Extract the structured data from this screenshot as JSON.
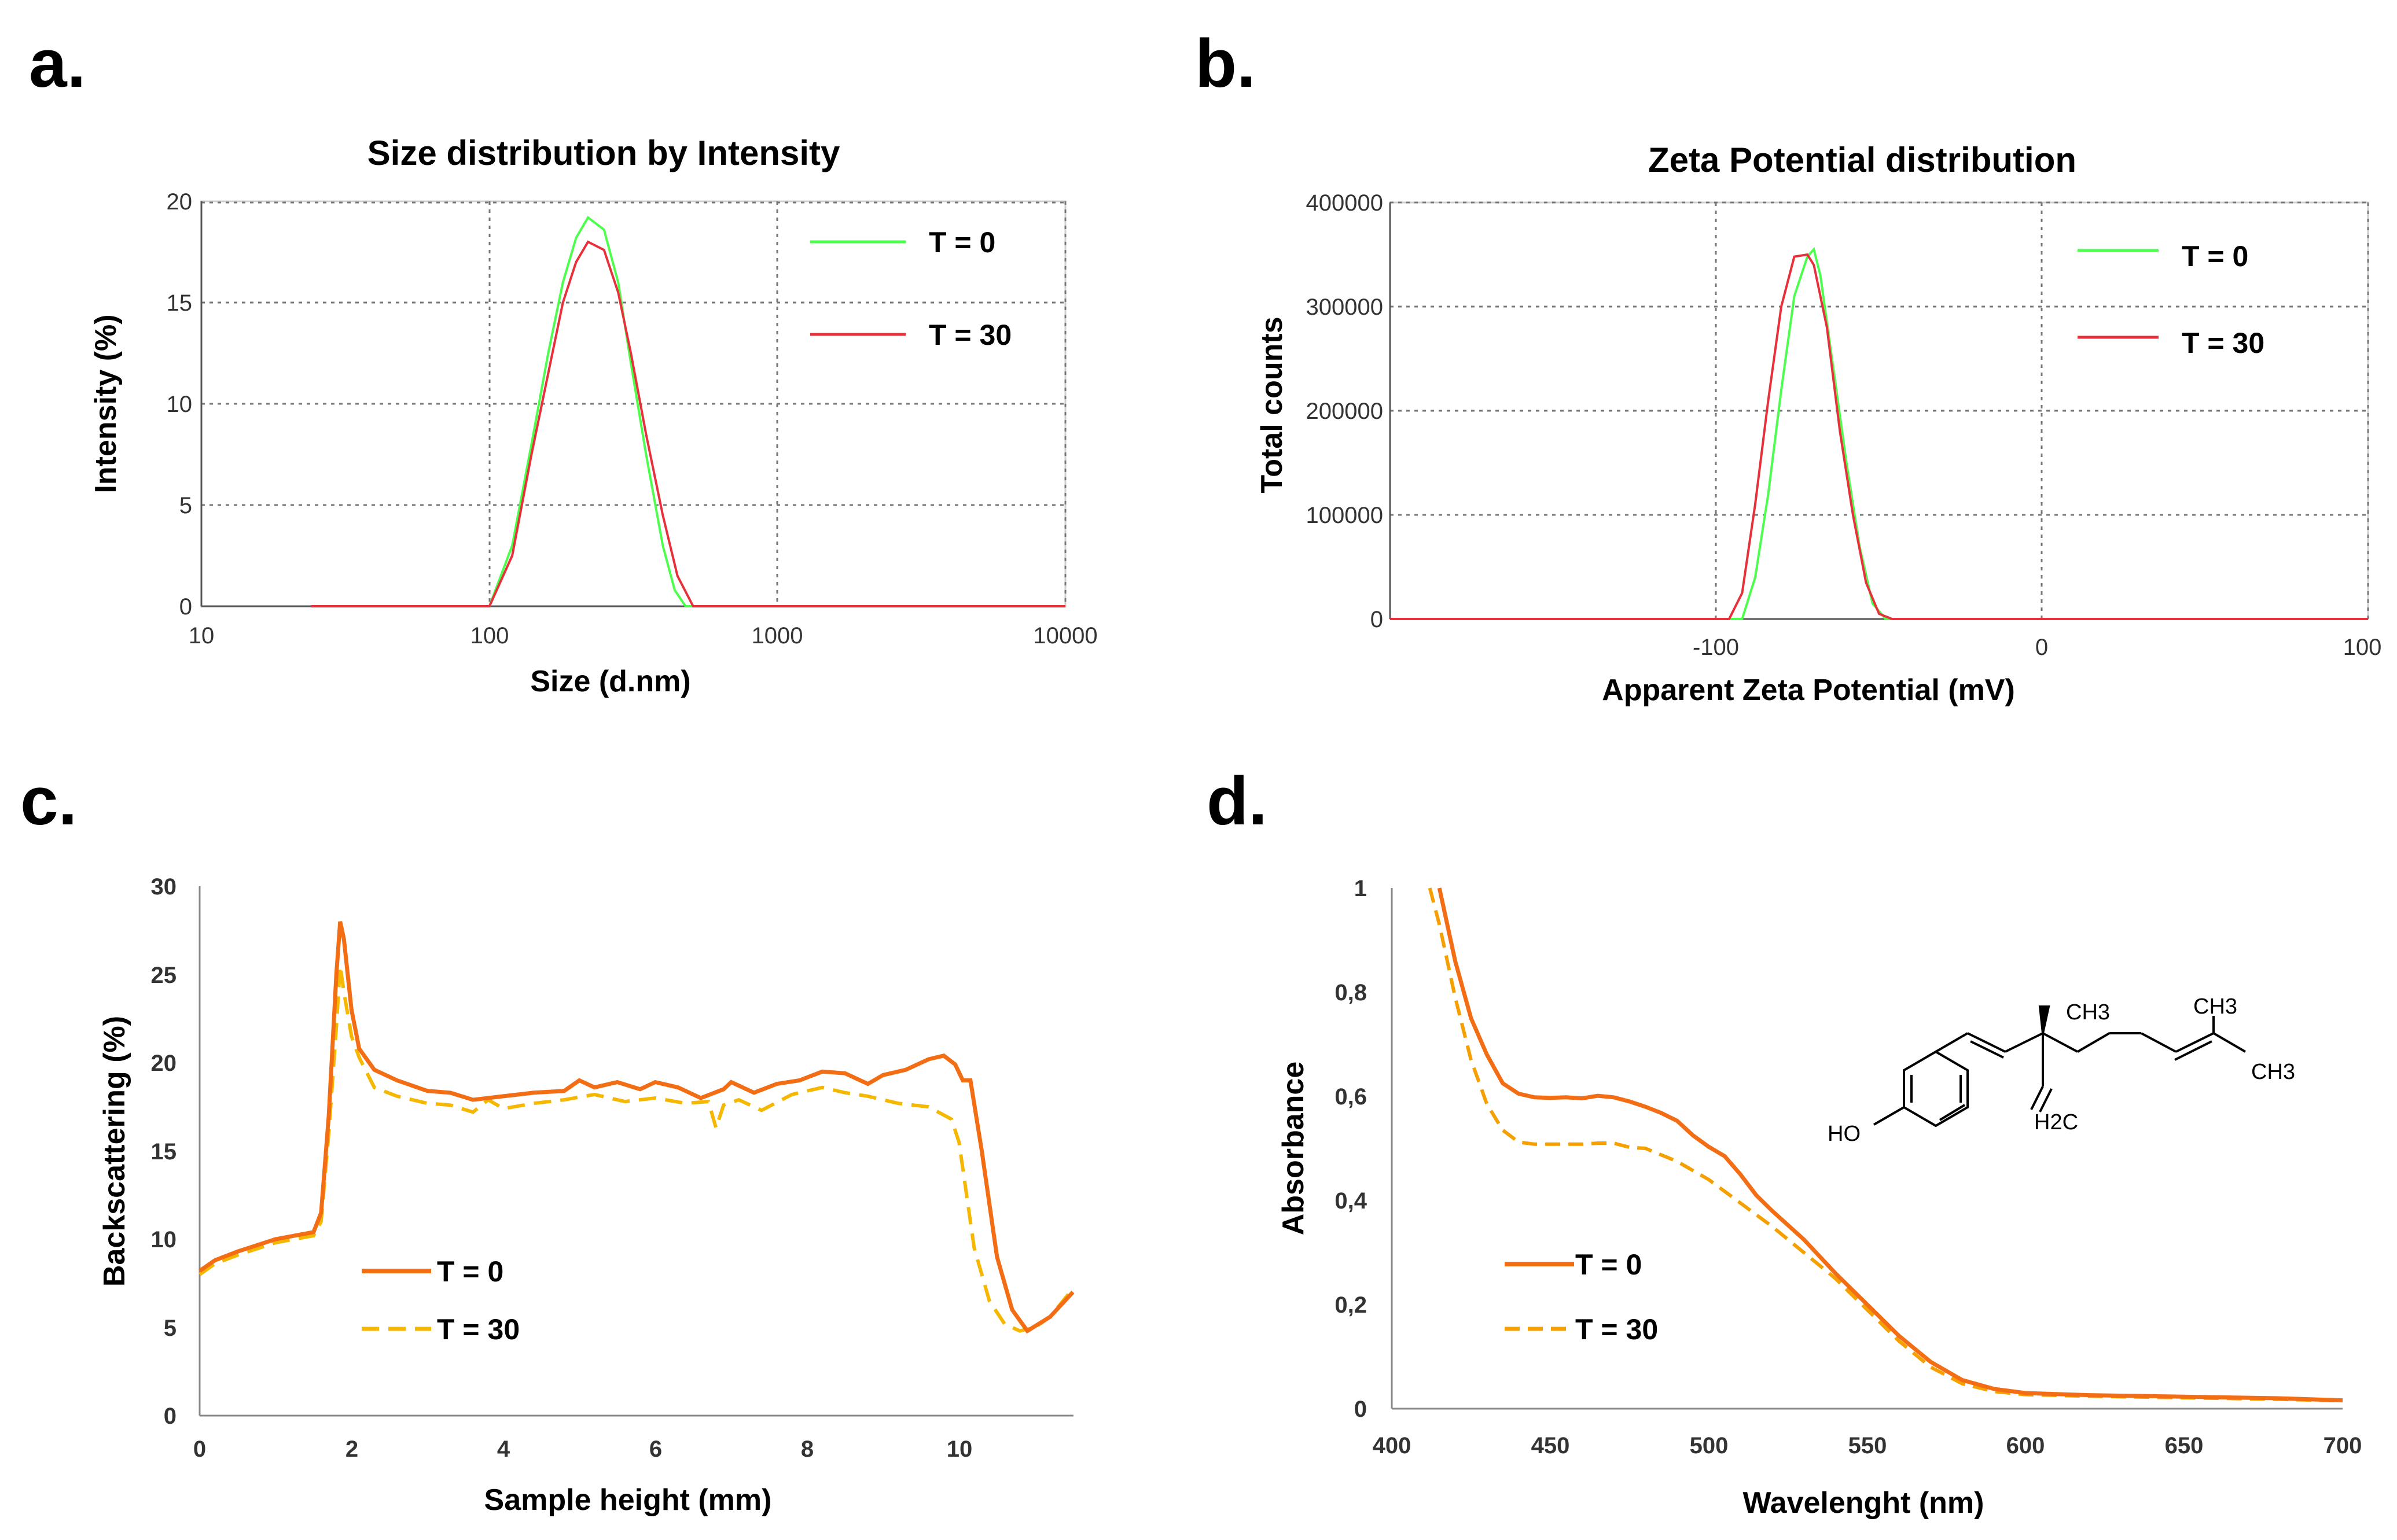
{
  "panels": [
    {
      "letter": "a.",
      "type": "line",
      "title": "Size distribution by Intensity",
      "xlabel": "Size (d.nm)",
      "ylabel": "Intensity (%)",
      "xscale": "log",
      "xlim": [
        10,
        10000
      ],
      "ylim": [
        0,
        20
      ],
      "xticks": [
        "10",
        "100",
        "1000",
        "10000"
      ],
      "yticks": [
        "0",
        "5",
        "10",
        "15",
        "20"
      ],
      "grid": true,
      "legend_position": "top-right",
      "legend": [
        "T = 0",
        "T = 30"
      ],
      "colors": {
        "t0": "#4dff4d",
        "t30": "#e8303a"
      },
      "series": [
        {
          "name": "T = 0",
          "x": [
            24,
            100,
            120,
            140,
            160,
            180,
            200,
            220,
            250,
            280,
            310,
            350,
            400,
            440,
            480,
            10000
          ],
          "y": [
            0,
            0,
            3,
            8,
            12.5,
            16,
            18.2,
            19.2,
            18.6,
            16,
            12,
            7.5,
            3,
            0.8,
            0,
            0
          ]
        },
        {
          "name": "T = 30",
          "x": [
            24,
            100,
            120,
            140,
            160,
            180,
            200,
            220,
            250,
            280,
            310,
            350,
            400,
            450,
            510,
            10000
          ],
          "y": [
            0,
            0,
            2.5,
            7.5,
            11.5,
            15,
            17,
            18,
            17.6,
            15.5,
            12.5,
            8.5,
            4.5,
            1.5,
            0,
            0
          ]
        }
      ]
    },
    {
      "letter": "b.",
      "type": "line",
      "title": "Zeta Potential distribution",
      "xlabel": "Apparent Zeta Potential (mV)",
      "ylabel": "Total counts",
      "xlim": [
        -200,
        100
      ],
      "ylim": [
        0,
        400000
      ],
      "xticks": [
        "-100",
        "0",
        "100"
      ],
      "xtick_values": [
        -100,
        0,
        100
      ],
      "yticks": [
        "0",
        "100000",
        "200000",
        "300000",
        "400000"
      ],
      "grid": true,
      "legend_position": "top-right",
      "legend": [
        "T = 0",
        "T = 30"
      ],
      "colors": {
        "t0": "#4dff4d",
        "t30": "#e8303a"
      },
      "series": [
        {
          "name": "T = 0",
          "x": [
            -200,
            -92,
            -88,
            -84,
            -80,
            -76,
            -72,
            -70,
            -68,
            -64,
            -60,
            -56,
            -52,
            -48,
            100
          ],
          "y": [
            0,
            0,
            40000,
            120000,
            220000,
            310000,
            348000,
            355000,
            330000,
            240000,
            150000,
            70000,
            15000,
            0,
            0
          ]
        },
        {
          "name": "T = 30",
          "x": [
            -200,
            -96,
            -92,
            -88,
            -84,
            -80,
            -76,
            -72,
            -70,
            -66,
            -62,
            -58,
            -54,
            -50,
            -46,
            100
          ],
          "y": [
            0,
            0,
            25000,
            110000,
            210000,
            300000,
            348000,
            350000,
            340000,
            280000,
            180000,
            100000,
            35000,
            5000,
            0,
            0
          ]
        }
      ]
    },
    {
      "letter": "c.",
      "type": "line",
      "title": "",
      "xlabel": "Sample height (mm)",
      "ylabel": "Backscattering  (%)",
      "xlim": [
        0,
        11.5
      ],
      "ylim": [
        0,
        30
      ],
      "xticks": [
        "0",
        "2",
        "4",
        "6",
        "8",
        "10"
      ],
      "xtick_values": [
        0,
        2,
        4,
        6,
        8,
        10
      ],
      "yticks": [
        "0",
        "5",
        "10",
        "15",
        "20",
        "25",
        "30"
      ],
      "grid": false,
      "legend_position": "bottom-left",
      "legend": [
        "T = 0",
        "T = 30"
      ],
      "colors": {
        "t0": "#f26d13",
        "t30": "#f5b700"
      },
      "series": [
        {
          "name": "T = 0",
          "x": [
            0,
            0.2,
            0.5,
            1.0,
            1.5,
            1.6,
            1.7,
            1.8,
            1.85,
            1.9,
            2.0,
            2.1,
            2.3,
            2.6,
            3.0,
            3.3,
            3.6,
            4.0,
            4.4,
            4.8,
            5.0,
            5.2,
            5.5,
            5.8,
            6.0,
            6.3,
            6.6,
            6.9,
            7.0,
            7.3,
            7.6,
            7.9,
            8.2,
            8.5,
            8.8,
            9.0,
            9.3,
            9.6,
            9.8,
            9.95,
            10.05,
            10.15,
            10.3,
            10.5,
            10.7,
            10.9,
            11.2,
            11.5
          ],
          "y": [
            8.2,
            8.8,
            9.3,
            10.0,
            10.4,
            11.5,
            17,
            25,
            28.0,
            27,
            23,
            20.8,
            19.6,
            19.0,
            18.4,
            18.3,
            17.9,
            18.1,
            18.3,
            18.4,
            19.0,
            18.6,
            18.9,
            18.5,
            18.9,
            18.6,
            18.0,
            18.5,
            18.9,
            18.3,
            18.8,
            19.0,
            19.5,
            19.4,
            18.8,
            19.3,
            19.6,
            20.2,
            20.4,
            19.9,
            19.0,
            19.0,
            15,
            9,
            6,
            4.8,
            5.6,
            7.0
          ]
        },
        {
          "name": "T = 30",
          "x": [
            0,
            0.2,
            0.5,
            1.0,
            1.5,
            1.6,
            1.7,
            1.8,
            1.85,
            1.9,
            2.0,
            2.1,
            2.3,
            2.6,
            3.0,
            3.3,
            3.6,
            3.8,
            4.0,
            4.4,
            4.8,
            5.2,
            5.6,
            6.0,
            6.4,
            6.7,
            6.8,
            6.9,
            7.1,
            7.4,
            7.8,
            8.2,
            8.5,
            8.8,
            9.2,
            9.6,
            9.9,
            10.0,
            10.1,
            10.2,
            10.4,
            10.6,
            10.8,
            11.0,
            11.2,
            11.5
          ],
          "y": [
            8.0,
            8.6,
            9.1,
            9.8,
            10.2,
            11.0,
            16,
            22,
            25.5,
            24,
            21.5,
            20.3,
            18.6,
            18.1,
            17.7,
            17.6,
            17.2,
            17.9,
            17.4,
            17.7,
            17.9,
            18.2,
            17.8,
            18.0,
            17.7,
            17.8,
            16.3,
            17.6,
            17.9,
            17.3,
            18.2,
            18.6,
            18.3,
            18.1,
            17.7,
            17.5,
            16.8,
            15.5,
            12.5,
            9.5,
            6.5,
            5.2,
            4.8,
            5.0,
            5.6,
            7.2
          ]
        }
      ]
    },
    {
      "letter": "d.",
      "type": "line",
      "title": "",
      "xlabel": "Wavelenght (nm)",
      "ylabel": "Absorbance",
      "xlim": [
        400,
        700
      ],
      "ylim": [
        0,
        1
      ],
      "xticks": [
        "400",
        "450",
        "500",
        "550",
        "600",
        "650",
        "700"
      ],
      "xtick_values": [
        400,
        450,
        500,
        550,
        600,
        650,
        700
      ],
      "yticks": [
        "0",
        "0,2",
        "0,4",
        "0,6",
        "0,8",
        "1"
      ],
      "grid": false,
      "legend_position": "bottom-left",
      "legend": [
        "T = 0",
        "T = 30"
      ],
      "colors": {
        "t0": "#f26d13",
        "t30": "#f5a000"
      },
      "series": [
        {
          "name": "T = 0",
          "x": [
            415,
            420,
            425,
            430,
            435,
            440,
            445,
            450,
            455,
            460,
            465,
            470,
            475,
            480,
            485,
            490,
            495,
            500,
            505,
            510,
            515,
            520,
            530,
            540,
            550,
            560,
            570,
            580,
            590,
            600,
            620,
            640,
            660,
            680,
            700
          ],
          "y": [
            1.0,
            0.86,
            0.75,
            0.68,
            0.625,
            0.605,
            0.598,
            0.597,
            0.598,
            0.596,
            0.601,
            0.598,
            0.59,
            0.58,
            0.568,
            0.553,
            0.525,
            0.503,
            0.485,
            0.45,
            0.41,
            0.38,
            0.325,
            0.26,
            0.2,
            0.14,
            0.09,
            0.055,
            0.038,
            0.03,
            0.026,
            0.024,
            0.022,
            0.02,
            0.016
          ]
        },
        {
          "name": "T = 30",
          "x": [
            412,
            415,
            420,
            425,
            430,
            435,
            440,
            445,
            450,
            455,
            460,
            465,
            470,
            475,
            480,
            490,
            500,
            510,
            520,
            530,
            540,
            550,
            560,
            570,
            580,
            590,
            600,
            620,
            640,
            660,
            680,
            700
          ],
          "y": [
            1.0,
            0.93,
            0.79,
            0.67,
            0.585,
            0.535,
            0.512,
            0.508,
            0.508,
            0.508,
            0.508,
            0.51,
            0.51,
            0.502,
            0.5,
            0.475,
            0.44,
            0.395,
            0.35,
            0.3,
            0.25,
            0.19,
            0.13,
            0.08,
            0.048,
            0.033,
            0.027,
            0.024,
            0.022,
            0.02,
            0.018,
            0.015
          ]
        }
      ]
    }
  ],
  "molecule": {
    "labels": [
      "HO",
      "CH3",
      "CH3",
      "CH3",
      "H2C"
    ]
  }
}
